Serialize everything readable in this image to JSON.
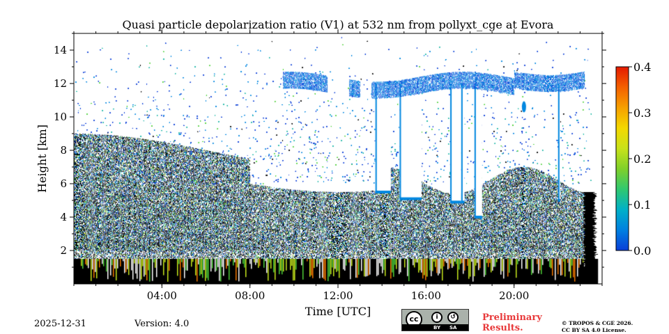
{
  "chart_data": {
    "type": "heatmap",
    "title": "Quasi particle depolarization ratio (V1) at 532 nm from pollyxt_cge at Evora",
    "xlabel": "Time [UTC]",
    "ylabel": "Height [km]",
    "xlim_hours": [
      0,
      24
    ],
    "ylim_km": [
      0,
      15
    ],
    "x_ticks": [
      {
        "value": 4,
        "label": "04:00"
      },
      {
        "value": 8,
        "label": "08:00"
      },
      {
        "value": 12,
        "label": "12:00"
      },
      {
        "value": 16,
        "label": "16:00"
      },
      {
        "value": 20,
        "label": "20:00"
      }
    ],
    "y_ticks": [
      {
        "value": 2,
        "label": "2"
      },
      {
        "value": 4,
        "label": "4"
      },
      {
        "value": 6,
        "label": "6"
      },
      {
        "value": 8,
        "label": "8"
      },
      {
        "value": 10,
        "label": "10"
      },
      {
        "value": 12,
        "label": "12"
      },
      {
        "value": 14,
        "label": "14"
      }
    ],
    "colorbar": {
      "range": [
        0.0,
        0.4
      ],
      "ticks": [
        {
          "value": 0.0,
          "label": "0.0"
        },
        {
          "value": 0.1,
          "label": "0.1"
        },
        {
          "value": 0.2,
          "label": "0.2"
        },
        {
          "value": 0.3,
          "label": "0.3"
        },
        {
          "value": 0.4,
          "label": "0.4"
        }
      ],
      "colors": [
        "#0a3ed8",
        "#0087e0",
        "#1ab6a6",
        "#4fd13a",
        "#c8ea1c",
        "#f6c400",
        "#f57a00",
        "#e61e00"
      ]
    },
    "features": {
      "dense_layer_top_km": 8.0,
      "noisy_layer_top_km": 10.5,
      "ground_layer_top_km": 1.5,
      "cirrus_layer_km": [
        11.3,
        12.7
      ],
      "cirrus_time_hours": [
        9.5,
        23.2
      ],
      "data_end_hours": 23.5
    }
  },
  "footer": {
    "date": "2025-12-31",
    "version": "Version: 4.0",
    "license_badge": {
      "cc": "cc",
      "by": "BY",
      "sa": "SA"
    },
    "preliminary_line1": "Preliminary",
    "preliminary_line2": "Results.",
    "copyright_line1": "© TROPOS & CGE 2026.",
    "copyright_line2": "CC BY SA 4.0 License."
  }
}
